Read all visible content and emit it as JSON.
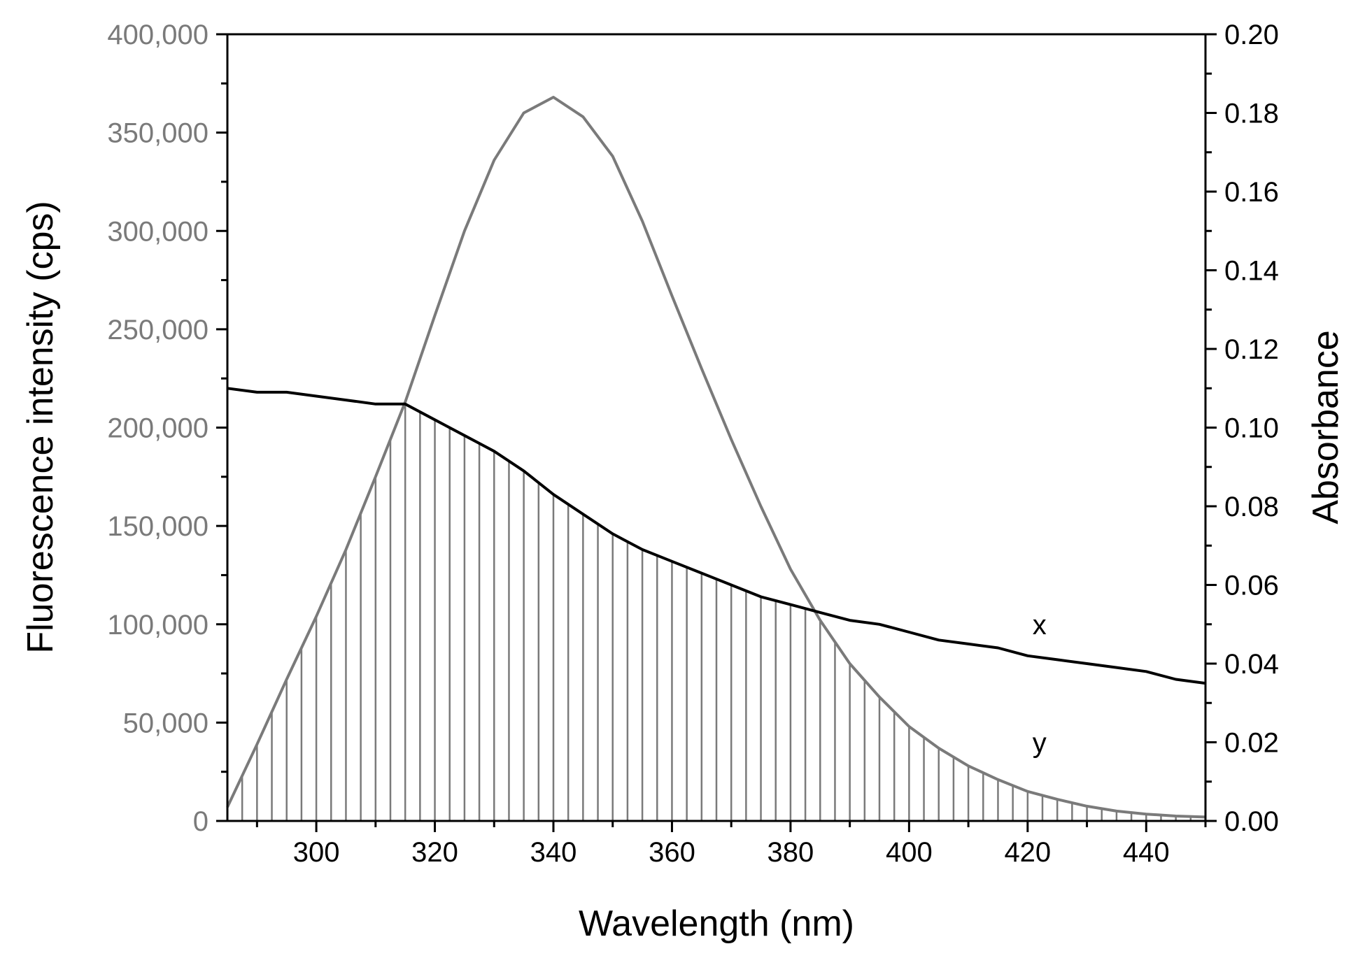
{
  "chart_data": {
    "type": "line",
    "title": "",
    "xlabel": "Wavelength (nm)",
    "ylabel_left": "Fluorescence intensity (cps)",
    "ylabel_right": "Absorbance",
    "xlim": [
      285,
      450
    ],
    "ylim_left": [
      0,
      400000
    ],
    "ylim_right": [
      0,
      0.2
    ],
    "grid": false,
    "colors": {
      "fluorescence": "#7a7a7a",
      "absorbance": "#000000",
      "left_axis_text": "#7a7a7a",
      "right_axis_text": "#000000"
    },
    "x_ticks": [
      300,
      320,
      340,
      360,
      380,
      400,
      420,
      440
    ],
    "x_tick_labels": [
      "300",
      "320",
      "340",
      "360",
      "380",
      "400",
      "420",
      "440"
    ],
    "y_left_ticks": [
      0,
      50000,
      100000,
      150000,
      200000,
      250000,
      300000,
      350000,
      400000
    ],
    "y_left_tick_labels": [
      "0",
      "50,000",
      "100,000",
      "150,000",
      "200,000",
      "250,000",
      "300,000",
      "350,000",
      "400,000"
    ],
    "y_right_ticks": [
      0,
      0.02,
      0.04,
      0.06,
      0.08,
      0.1,
      0.12,
      0.14,
      0.16,
      0.18,
      0.2
    ],
    "y_right_tick_labels": [
      "0.00",
      "0.02",
      "0.04",
      "0.06",
      "0.08",
      "0.10",
      "0.12",
      "0.14",
      "0.16",
      "0.18",
      "0.20"
    ],
    "series": [
      {
        "name": "y",
        "label": "y",
        "axis": "left",
        "x": [
          285,
          290,
          295,
          300,
          305,
          310,
          315,
          320,
          325,
          330,
          335,
          340,
          345,
          350,
          355,
          360,
          365,
          370,
          375,
          380,
          385,
          390,
          395,
          400,
          405,
          410,
          415,
          420,
          425,
          430,
          435,
          440,
          445,
          450
        ],
        "values": [
          7000,
          39000,
          72000,
          104000,
          138000,
          175000,
          213000,
          257000,
          300000,
          336000,
          360000,
          368000,
          358000,
          338000,
          305000,
          267000,
          230000,
          194000,
          160000,
          128000,
          102000,
          80000,
          63000,
          48000,
          37000,
          28000,
          21000,
          15000,
          11000,
          7500,
          5000,
          3500,
          2500,
          2000
        ],
        "label_at": [
          422,
          35000
        ]
      },
      {
        "name": "x",
        "label": "x",
        "axis": "right",
        "x": [
          285,
          290,
          295,
          300,
          305,
          310,
          315,
          320,
          325,
          330,
          335,
          340,
          345,
          350,
          355,
          360,
          365,
          370,
          375,
          380,
          385,
          390,
          395,
          400,
          405,
          410,
          415,
          420,
          425,
          430,
          435,
          440,
          445,
          450
        ],
        "values": [
          0.11,
          0.109,
          0.109,
          0.108,
          0.107,
          0.106,
          0.106,
          0.102,
          0.098,
          0.094,
          0.089,
          0.083,
          0.078,
          0.073,
          0.069,
          0.066,
          0.063,
          0.06,
          0.057,
          0.055,
          0.053,
          0.051,
          0.05,
          0.048,
          0.046,
          0.045,
          0.044,
          0.042,
          0.041,
          0.04,
          0.039,
          0.038,
          0.036,
          0.035
        ],
        "label_at": [
          422,
          0.0475
        ]
      }
    ],
    "overlap_hatch": {
      "from": 285,
      "to": 450,
      "step": 2.5,
      "description": "vertical hatch lines filling area under min(y, x)"
    }
  }
}
